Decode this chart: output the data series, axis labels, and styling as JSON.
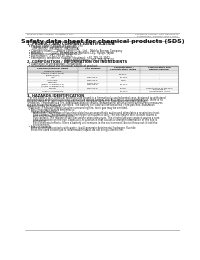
{
  "header_left": "Product name: Lithium Ion Battery Cell",
  "header_right_line1": "Substance number: SDS-LIB-000010",
  "header_right_line2": "Established / Revision: Dec.7.2016",
  "title": "Safety data sheet for chemical products (SDS)",
  "s1_title": "1. PRODUCT AND COMPANY IDENTIFICATION",
  "s1_lines": [
    "  • Product name: Lithium Ion Battery Cell",
    "  • Product code: Cylindrical-type cell",
    "      (IFR18650U, IFR18650L, IFR18650A)",
    "  • Company name:     Benzo Electric Co., Ltd.,  Mobile Energy Company",
    "  • Address:           2021  Kamimatsuri, Sumoto-City, Hyogo, Japan",
    "  • Telephone number: +81-799-26-4111",
    "  • Fax number:  +81-799-26-4121",
    "  • Emergency telephone number (daytime): +81-799-26-3942",
    "                                          (Night and holiday): +81-799-26-4101"
  ],
  "s2_title": "2. COMPOSITION / INFORMATION ON INGREDIENTS",
  "s2_a": "  • Substance or preparation: Preparation",
  "s2_b": "  • Information about the chemical nature of product:",
  "tbl_h1": "Common/chemical name",
  "tbl_h2": "Common name",
  "tbl_h3": "CAS number",
  "tbl_h4": "Concentration /\nConcentration range",
  "tbl_h5": "Classification and\nhazard labeling",
  "tbl_rows": [
    [
      "Lithium cobalt oxide\n(LiMnCo)(O₄)",
      "-",
      "30-50%",
      "-"
    ],
    [
      "Iron",
      "7439-89-6",
      "15-25%",
      "-"
    ],
    [
      "Aluminum",
      "7429-90-5",
      "2-8%",
      "-"
    ],
    [
      "Graphite\n(Metal in graphite-1)\n(Al/Mn in graphite-1)",
      "77782-42-5\n7439-89-6",
      "10-20%",
      "-"
    ],
    [
      "Copper",
      "7440-50-8",
      "5-15%",
      "Sensitization of the skin\ngroup No.2"
    ],
    [
      "Organic electrolyte",
      "-",
      "10-20%",
      "Inflammable liquid"
    ]
  ],
  "s3_title": "3. HAZARDS IDENTIFICATION",
  "s3_paras": [
    "  For the battery cell, chemical materials are stored in a hermetically-sealed metal case, designed to withstand",
    "temperatures and electrolyte-ionic-conduction during normal use. As a result, during normal use, there is no",
    "physical danger of ignition or evaporation and therefore danger of hazardous materials leakage.",
    "  However, if exposed to a fire, added mechanical shocks, decomposed, whilst electro-without any measures,",
    "the gas release vent will be operated. The battery cell case will be breached if fire-patches, hazardous",
    "materials may be released.",
    "  Moreover, if heated strongly by the surrounding fire, toxic gas may be emitted."
  ],
  "s3_bullets": [
    "  • Most important hazard and effects:",
    "     Human health effects:",
    "        Inhalation: The release of the electrolyte has an anaesthetic action and stimulates a respiratory tract.",
    "        Skin contact: The release of the electrolyte stimulates a skin. The electrolyte skin contact causes a",
    "        sore and stimulation on the skin.",
    "        Eye contact: The release of the electrolyte stimulates eyes. The electrolyte eye contact causes a sore",
    "        and stimulation on the eye. Especially, a substance that causes a strong inflammation of the eye is",
    "        contained.",
    "        Environmental effects: Since a battery cell remains in the environment, do not throw out it into the",
    "        environment.",
    "",
    "  • Specific hazards:",
    "     If the electrolyte contacts with water, it will generate detrimental hydrogen fluoride.",
    "     Since the used electrolyte is inflammable liquid, do not bring close to fire."
  ],
  "footer_line": true
}
